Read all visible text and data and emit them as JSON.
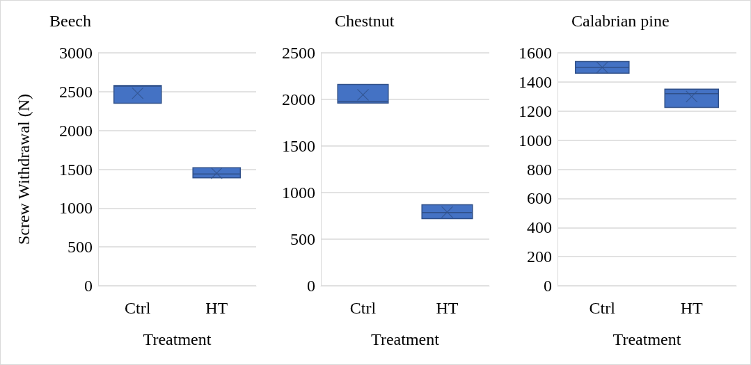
{
  "chart_data": [
    {
      "type": "box",
      "title": "Beech",
      "xlabel": "Treatment",
      "ylabel": "Screw Withdrawal (N)",
      "categories": [
        "Ctrl",
        "HT"
      ],
      "color": "#4472c4",
      "grid": "y",
      "ylim": [
        0,
        3000
      ],
      "yticks": [
        0,
        500,
        1000,
        1500,
        2000,
        2500,
        3000
      ],
      "boxes": [
        {
          "low": 2350,
          "q1": 2350,
          "median": 2570,
          "q3": 2580,
          "high": 2580,
          "mean": 2480
        },
        {
          "low": 1390,
          "q1": 1390,
          "median": 1440,
          "q3": 1520,
          "high": 1520,
          "mean": 1450
        }
      ]
    },
    {
      "type": "box",
      "title": "Chestnut",
      "xlabel": "Treatment",
      "categories": [
        "Ctrl",
        "HT"
      ],
      "color": "#4472c4",
      "grid": "y",
      "ylim": [
        0,
        2500
      ],
      "yticks": [
        0,
        500,
        1000,
        1500,
        2000,
        2500
      ],
      "boxes": [
        {
          "low": 1960,
          "q1": 1960,
          "median": 1980,
          "q3": 2160,
          "high": 2160,
          "mean": 2050
        },
        {
          "low": 720,
          "q1": 720,
          "median": 785,
          "q3": 870,
          "high": 870,
          "mean": 790
        }
      ]
    },
    {
      "type": "box",
      "title": "Calabrian pine",
      "xlabel": "Treatment",
      "categories": [
        "Ctrl",
        "HT"
      ],
      "color": "#4472c4",
      "grid": "y",
      "ylim": [
        0,
        1600
      ],
      "yticks": [
        0,
        200,
        400,
        600,
        800,
        1000,
        1200,
        1400,
        1600
      ],
      "boxes": [
        {
          "low": 1460,
          "q1": 1460,
          "median": 1500,
          "q3": 1540,
          "high": 1540,
          "mean": 1500
        },
        {
          "low": 1225,
          "q1": 1225,
          "median": 1320,
          "q3": 1350,
          "high": 1350,
          "mean": 1300
        }
      ]
    }
  ]
}
